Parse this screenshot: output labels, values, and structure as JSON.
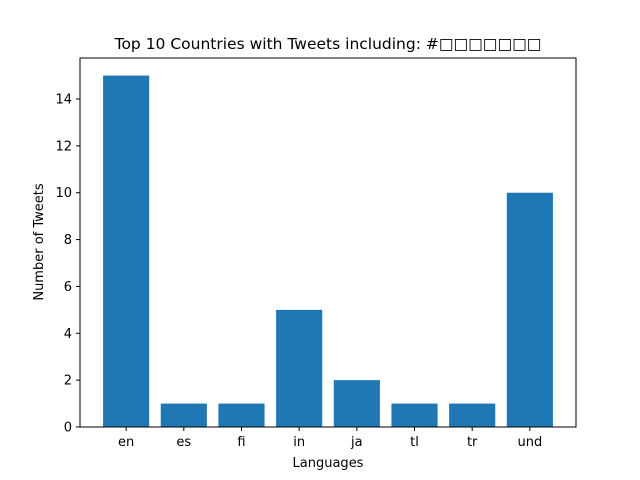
{
  "chart_data": {
    "type": "bar",
    "title": "Top 10 Countries with Tweets including: #□□□□□□□",
    "xlabel": "Languages",
    "ylabel": "Number of Tweets",
    "categories": [
      "en",
      "es",
      "fi",
      "in",
      "ja",
      "tl",
      "tr",
      "und"
    ],
    "values": [
      15,
      1,
      1,
      5,
      2,
      1,
      1,
      10
    ],
    "ylim": [
      0,
      15.75
    ],
    "yticks": [
      0,
      2,
      4,
      6,
      8,
      10,
      12,
      14
    ],
    "grid": false,
    "bar_color": "#1f77b4"
  }
}
